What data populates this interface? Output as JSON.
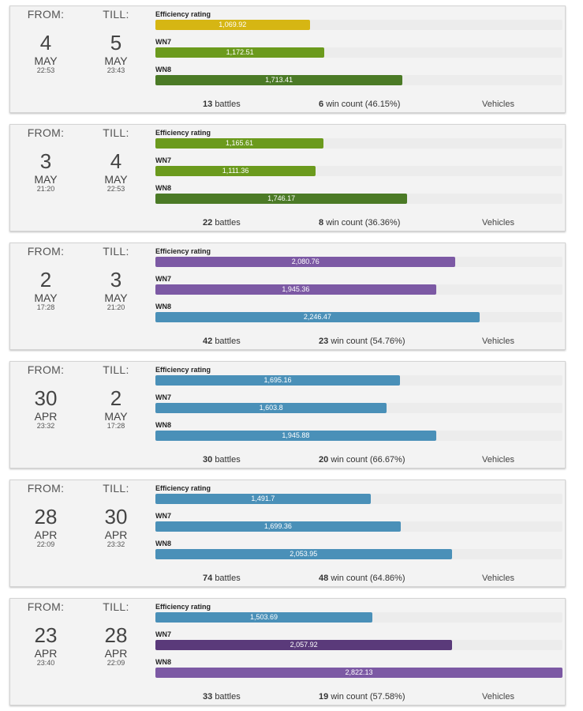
{
  "labels": {
    "from": "FROM:",
    "till": "TILL:",
    "efficiency": "Efficiency rating",
    "wn7": "WN7",
    "wn8": "WN8",
    "battles_suffix": "battles",
    "wins_suffix": "win count",
    "vehicles": "Vehicles"
  },
  "scale_max": 2822.13,
  "colors": {
    "yellow": "#d6b613",
    "green": "#6b9a1d",
    "dark_green": "#4b7a26",
    "blue": "#4a90b8",
    "purple": "#7c59a4",
    "dark_purple": "#5a3a7a"
  },
  "sessions": [
    {
      "from": {
        "day": "4",
        "month": "MAY",
        "time": "22:53"
      },
      "till": {
        "day": "5",
        "month": "MAY",
        "time": "23:43"
      },
      "efficiency": {
        "text": "1,069.92",
        "value": 1069.92,
        "color": "#d6b613"
      },
      "wn7": {
        "text": "1,172.51",
        "value": 1172.51,
        "color": "#6b9a1d"
      },
      "wn8": {
        "text": "1,713.41",
        "value": 1713.41,
        "color": "#4b7a26"
      },
      "battles": "13",
      "wins": "6",
      "win_pct": "(46.15%)"
    },
    {
      "from": {
        "day": "3",
        "month": "MAY",
        "time": "21:20"
      },
      "till": {
        "day": "4",
        "month": "MAY",
        "time": "22:53"
      },
      "efficiency": {
        "text": "1,165.61",
        "value": 1165.61,
        "color": "#6b9a1d"
      },
      "wn7": {
        "text": "1,111.36",
        "value": 1111.36,
        "color": "#6b9a1d"
      },
      "wn8": {
        "text": "1,746.17",
        "value": 1746.17,
        "color": "#4b7a26"
      },
      "battles": "22",
      "wins": "8",
      "win_pct": "(36.36%)"
    },
    {
      "from": {
        "day": "2",
        "month": "MAY",
        "time": "17:28"
      },
      "till": {
        "day": "3",
        "month": "MAY",
        "time": "21:20"
      },
      "efficiency": {
        "text": "2,080.76",
        "value": 2080.76,
        "color": "#7c59a4"
      },
      "wn7": {
        "text": "1,945.36",
        "value": 1945.36,
        "color": "#7c59a4"
      },
      "wn8": {
        "text": "2,246.47",
        "value": 2246.47,
        "color": "#4a90b8"
      },
      "battles": "42",
      "wins": "23",
      "win_pct": "(54.76%)"
    },
    {
      "from": {
        "day": "30",
        "month": "APR",
        "time": "23:32"
      },
      "till": {
        "day": "2",
        "month": "MAY",
        "time": "17:28"
      },
      "efficiency": {
        "text": "1,695.16",
        "value": 1695.16,
        "color": "#4a90b8"
      },
      "wn7": {
        "text": "1,603.8",
        "value": 1603.8,
        "color": "#4a90b8"
      },
      "wn8": {
        "text": "1,945.88",
        "value": 1945.88,
        "color": "#4a90b8"
      },
      "battles": "30",
      "wins": "20",
      "win_pct": "(66.67%)"
    },
    {
      "from": {
        "day": "28",
        "month": "APR",
        "time": "22:09"
      },
      "till": {
        "day": "30",
        "month": "APR",
        "time": "23:32"
      },
      "efficiency": {
        "text": "1,491.7",
        "value": 1491.7,
        "color": "#4a90b8"
      },
      "wn7": {
        "text": "1,699.36",
        "value": 1699.36,
        "color": "#4a90b8"
      },
      "wn8": {
        "text": "2,053.95",
        "value": 2053.95,
        "color": "#4a90b8"
      },
      "battles": "74",
      "wins": "48",
      "win_pct": "(64.86%)"
    },
    {
      "from": {
        "day": "23",
        "month": "APR",
        "time": "23:40"
      },
      "till": {
        "day": "28",
        "month": "APR",
        "time": "22:09"
      },
      "efficiency": {
        "text": "1,503.69",
        "value": 1503.69,
        "color": "#4a90b8"
      },
      "wn7": {
        "text": "2,057.92",
        "value": 2057.92,
        "color": "#5a3a7a"
      },
      "wn8": {
        "text": "2,822.13",
        "value": 2822.13,
        "color": "#7c59a4"
      },
      "battles": "33",
      "wins": "19",
      "win_pct": "(57.58%)"
    }
  ]
}
